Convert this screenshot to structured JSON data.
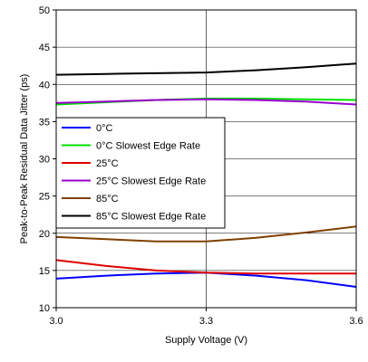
{
  "chart_data": {
    "type": "line",
    "title": "",
    "xlabel": "Supply Voltage (V)",
    "ylabel": "Peak-to-Peak Residual Data Jitter (ps)",
    "xlim": [
      3.0,
      3.6
    ],
    "ylim": [
      10,
      50
    ],
    "x_ticks": [
      3.0,
      3.3,
      3.6
    ],
    "x_tick_labels": [
      "3.0",
      "3.3",
      "3.6"
    ],
    "y_ticks": [
      10,
      15,
      20,
      25,
      30,
      35,
      40,
      45,
      50
    ],
    "y_tick_labels": [
      "10",
      "15",
      "20",
      "25",
      "30",
      "35",
      "40",
      "45",
      "50"
    ],
    "grid": true,
    "legend_position": "left",
    "x": [
      3.0,
      3.1,
      3.2,
      3.3,
      3.4,
      3.5,
      3.6
    ],
    "series": [
      {
        "name": "0°C",
        "color": "#0000ff",
        "values": [
          13.9,
          14.3,
          14.6,
          14.7,
          14.3,
          13.7,
          12.8
        ]
      },
      {
        "name": "0°C Slowest Edge Rate",
        "color": "#00e000",
        "values": [
          37.3,
          37.6,
          37.9,
          38.1,
          38.1,
          38.0,
          37.9
        ]
      },
      {
        "name": "25°C",
        "color": "#e00000",
        "values": [
          16.4,
          15.6,
          15.0,
          14.7,
          14.6,
          14.6,
          14.6
        ]
      },
      {
        "name": "25°C Slowest Edge Rate",
        "color": "#9900cc",
        "values": [
          37.5,
          37.7,
          37.9,
          38.0,
          37.9,
          37.7,
          37.3
        ]
      },
      {
        "name": "85°C",
        "color": "#804000",
        "values": [
          19.5,
          19.2,
          18.9,
          18.9,
          19.4,
          20.1,
          20.9
        ]
      },
      {
        "name": "85°C Slowest Edge Rate",
        "color": "#000000",
        "values": [
          41.3,
          41.4,
          41.5,
          41.6,
          41.9,
          42.3,
          42.8
        ]
      }
    ]
  }
}
